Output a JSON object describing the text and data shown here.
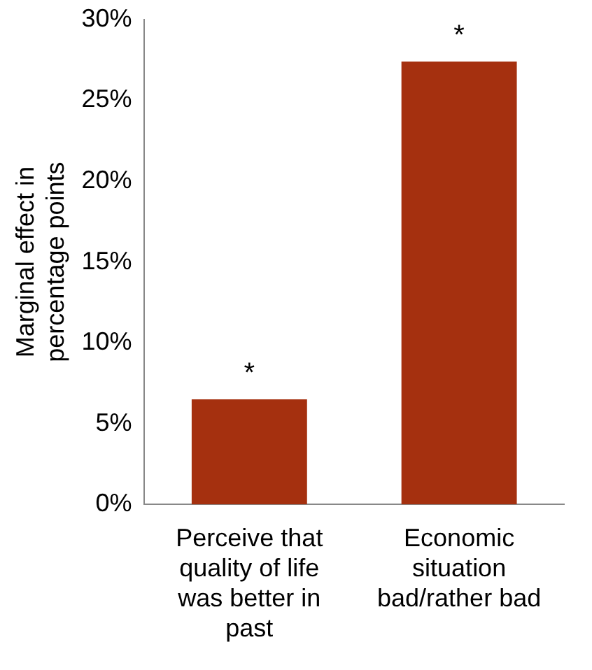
{
  "chart_data": {
    "type": "bar",
    "ylabel": "Marginal effect in percentage points",
    "categories": [
      "Perceive that quality of life was better in past",
      "Economic situation bad/rather bad"
    ],
    "values": [
      6.5,
      27.4
    ],
    "color": "#a5300f",
    "ylim": [
      0,
      30
    ],
    "yticks": [
      {
        "value": 0,
        "label": "0%"
      },
      {
        "value": 5,
        "label": "5%"
      },
      {
        "value": 10,
        "label": "10%"
      },
      {
        "value": 15,
        "label": "15%"
      },
      {
        "value": 20,
        "label": "20%"
      },
      {
        "value": 25,
        "label": "25%"
      },
      {
        "value": 30,
        "label": "30%"
      }
    ],
    "grid": false,
    "legend": false,
    "annotations": [
      {
        "text": "*",
        "x": "Perceive that quality of life was better in past",
        "y": 6.5
      },
      {
        "text": "*",
        "x": "Economic situation bad/rather bad",
        "y": 27.4
      }
    ]
  }
}
